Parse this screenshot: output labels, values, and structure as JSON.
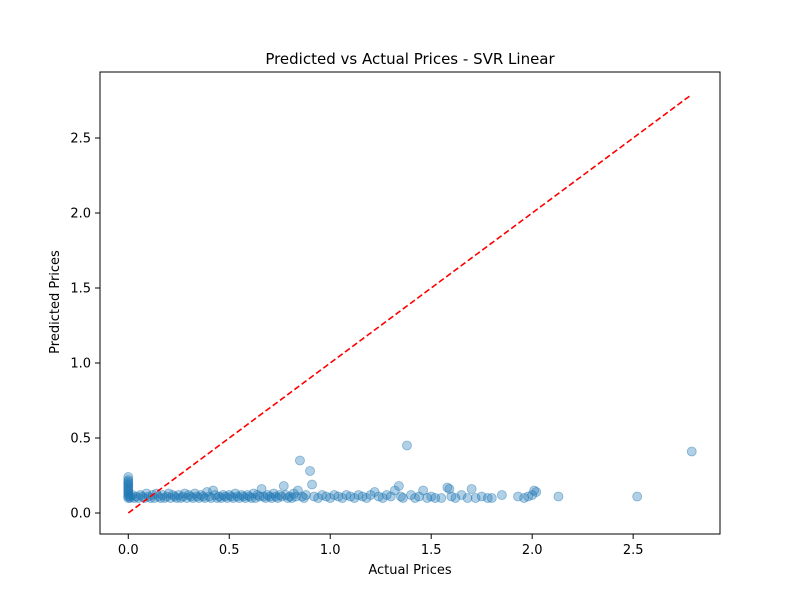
{
  "chart_data": {
    "type": "scatter",
    "title": "Predicted vs Actual Prices - SVR Linear",
    "xlabel": "Actual Prices",
    "ylabel": "Predicted Prices",
    "xlim": [
      -0.14,
      2.93
    ],
    "ylim": [
      -0.14,
      2.94
    ],
    "xticks": [
      0.0,
      0.5,
      1.0,
      1.5,
      2.0,
      2.5
    ],
    "xtick_labels": [
      "0.0",
      "0.5",
      "1.0",
      "1.5",
      "2.0",
      "2.5"
    ],
    "yticks": [
      0.0,
      0.5,
      1.0,
      1.5,
      2.0,
      2.5
    ],
    "ytick_labels": [
      "0.0",
      "0.5",
      "1.0",
      "1.5",
      "2.0",
      "2.5"
    ],
    "grid": false,
    "marker_color": "#1f77b4",
    "marker_alpha": 0.35,
    "reference_line": {
      "x": [
        0.0,
        2.79
      ],
      "y": [
        0.0,
        2.79
      ],
      "color": "#ff0000",
      "style": "dashed"
    },
    "series": [
      {
        "points": [
          [
            0.0,
            0.1
          ],
          [
            0.0,
            0.11
          ],
          [
            0.0,
            0.12
          ],
          [
            0.0,
            0.13
          ],
          [
            0.0,
            0.14
          ],
          [
            0.0,
            0.15
          ],
          [
            0.0,
            0.16
          ],
          [
            0.0,
            0.17
          ],
          [
            0.0,
            0.18
          ],
          [
            0.0,
            0.19
          ],
          [
            0.0,
            0.2
          ],
          [
            0.0,
            0.21
          ],
          [
            0.0,
            0.22
          ],
          [
            0.0,
            0.24
          ],
          [
            0.01,
            0.1
          ],
          [
            0.01,
            0.11
          ],
          [
            0.02,
            0.12
          ],
          [
            0.03,
            0.1
          ],
          [
            0.04,
            0.11
          ],
          [
            0.05,
            0.1
          ],
          [
            0.06,
            0.12
          ],
          [
            0.07,
            0.11
          ],
          [
            0.08,
            0.1
          ],
          [
            0.09,
            0.13
          ],
          [
            0.1,
            0.11
          ],
          [
            0.11,
            0.1
          ],
          [
            0.12,
            0.12
          ],
          [
            0.13,
            0.1
          ],
          [
            0.14,
            0.13
          ],
          [
            0.15,
            0.11
          ],
          [
            0.16,
            0.1
          ],
          [
            0.17,
            0.12
          ],
          [
            0.18,
            0.1
          ],
          [
            0.19,
            0.11
          ],
          [
            0.2,
            0.13
          ],
          [
            0.21,
            0.1
          ],
          [
            0.22,
            0.12
          ],
          [
            0.23,
            0.11
          ],
          [
            0.24,
            0.1
          ],
          [
            0.25,
            0.12
          ],
          [
            0.26,
            0.1
          ],
          [
            0.27,
            0.11
          ],
          [
            0.28,
            0.13
          ],
          [
            0.29,
            0.1
          ],
          [
            0.3,
            0.12
          ],
          [
            0.31,
            0.11
          ],
          [
            0.32,
            0.1
          ],
          [
            0.33,
            0.13
          ],
          [
            0.34,
            0.11
          ],
          [
            0.35,
            0.1
          ],
          [
            0.36,
            0.12
          ],
          [
            0.37,
            0.11
          ],
          [
            0.38,
            0.1
          ],
          [
            0.39,
            0.14
          ],
          [
            0.4,
            0.11
          ],
          [
            0.41,
            0.1
          ],
          [
            0.42,
            0.15
          ],
          [
            0.43,
            0.12
          ],
          [
            0.44,
            0.1
          ],
          [
            0.45,
            0.11
          ],
          [
            0.46,
            0.1
          ],
          [
            0.47,
            0.12
          ],
          [
            0.48,
            0.11
          ],
          [
            0.49,
            0.1
          ],
          [
            0.5,
            0.12
          ],
          [
            0.51,
            0.11
          ],
          [
            0.52,
            0.1
          ],
          [
            0.53,
            0.13
          ],
          [
            0.54,
            0.11
          ],
          [
            0.55,
            0.1
          ],
          [
            0.56,
            0.12
          ],
          [
            0.57,
            0.11
          ],
          [
            0.58,
            0.1
          ],
          [
            0.59,
            0.12
          ],
          [
            0.6,
            0.11
          ],
          [
            0.61,
            0.1
          ],
          [
            0.62,
            0.13
          ],
          [
            0.63,
            0.1
          ],
          [
            0.64,
            0.12
          ],
          [
            0.65,
            0.11
          ],
          [
            0.66,
            0.16
          ],
          [
            0.67,
            0.11
          ],
          [
            0.68,
            0.1
          ],
          [
            0.69,
            0.12
          ],
          [
            0.7,
            0.11
          ],
          [
            0.71,
            0.1
          ],
          [
            0.72,
            0.13
          ],
          [
            0.73,
            0.11
          ],
          [
            0.74,
            0.1
          ],
          [
            0.75,
            0.12
          ],
          [
            0.76,
            0.11
          ],
          [
            0.77,
            0.18
          ],
          [
            0.78,
            0.12
          ],
          [
            0.79,
            0.1
          ],
          [
            0.8,
            0.11
          ],
          [
            0.81,
            0.1
          ],
          [
            0.82,
            0.13
          ],
          [
            0.83,
            0.11
          ],
          [
            0.84,
            0.15
          ],
          [
            0.85,
            0.35
          ],
          [
            0.86,
            0.11
          ],
          [
            0.87,
            0.1
          ],
          [
            0.88,
            0.12
          ],
          [
            0.9,
            0.28
          ],
          [
            0.91,
            0.19
          ],
          [
            0.92,
            0.11
          ],
          [
            0.94,
            0.1
          ],
          [
            0.96,
            0.12
          ],
          [
            0.98,
            0.11
          ],
          [
            1.0,
            0.1
          ],
          [
            1.02,
            0.12
          ],
          [
            1.04,
            0.11
          ],
          [
            1.06,
            0.1
          ],
          [
            1.08,
            0.12
          ],
          [
            1.1,
            0.11
          ],
          [
            1.12,
            0.1
          ],
          [
            1.14,
            0.12
          ],
          [
            1.16,
            0.11
          ],
          [
            1.18,
            0.1
          ],
          [
            1.2,
            0.12
          ],
          [
            1.22,
            0.14
          ],
          [
            1.24,
            0.11
          ],
          [
            1.26,
            0.1
          ],
          [
            1.28,
            0.12
          ],
          [
            1.3,
            0.11
          ],
          [
            1.32,
            0.15
          ],
          [
            1.34,
            0.18
          ],
          [
            1.35,
            0.11
          ],
          [
            1.36,
            0.1
          ],
          [
            1.38,
            0.45
          ],
          [
            1.4,
            0.12
          ],
          [
            1.42,
            0.1
          ],
          [
            1.44,
            0.11
          ],
          [
            1.46,
            0.15
          ],
          [
            1.48,
            0.1
          ],
          [
            1.5,
            0.11
          ],
          [
            1.52,
            0.1
          ],
          [
            1.55,
            0.1
          ],
          [
            1.58,
            0.17
          ],
          [
            1.59,
            0.16
          ],
          [
            1.6,
            0.11
          ],
          [
            1.62,
            0.1
          ],
          [
            1.65,
            0.12
          ],
          [
            1.68,
            0.1
          ],
          [
            1.7,
            0.16
          ],
          [
            1.72,
            0.1
          ],
          [
            1.75,
            0.11
          ],
          [
            1.78,
            0.1
          ],
          [
            1.8,
            0.1
          ],
          [
            1.85,
            0.12
          ],
          [
            1.93,
            0.11
          ],
          [
            1.96,
            0.1
          ],
          [
            1.98,
            0.11
          ],
          [
            2.0,
            0.12
          ],
          [
            2.01,
            0.15
          ],
          [
            2.02,
            0.14
          ],
          [
            2.13,
            0.11
          ],
          [
            2.52,
            0.11
          ],
          [
            2.79,
            0.41
          ]
        ]
      }
    ]
  }
}
